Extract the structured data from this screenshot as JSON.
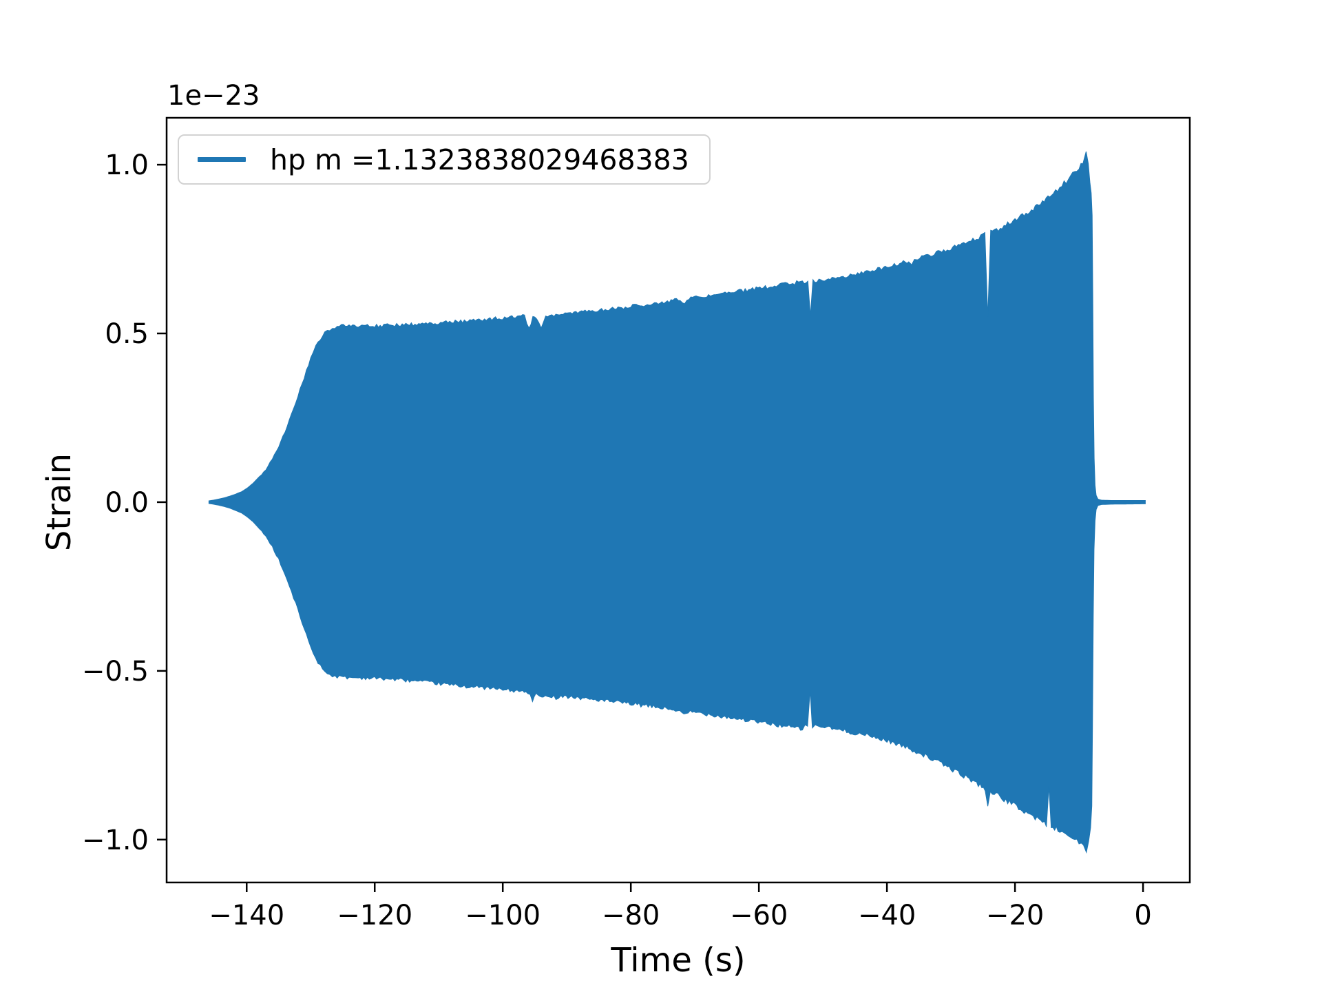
{
  "chart_data": {
    "type": "line",
    "title": "",
    "xlabel": "Time (s)",
    "ylabel": "Strain",
    "y_offset_text": "1e−23",
    "xlim": [
      -152.5,
      7.3
    ],
    "ylim": [
      -1.127,
      1.139
    ],
    "grid": false,
    "legend_position": "upper left",
    "xticks": [
      {
        "value": -140,
        "label": "−140"
      },
      {
        "value": -120,
        "label": "−120"
      },
      {
        "value": -100,
        "label": "−100"
      },
      {
        "value": -80,
        "label": "−80"
      },
      {
        "value": -60,
        "label": "−60"
      },
      {
        "value": -40,
        "label": "−40"
      },
      {
        "value": -20,
        "label": "−20"
      },
      {
        "value": 0,
        "label": "0"
      }
    ],
    "yticks": [
      {
        "value": -1.0,
        "label": "−1.0"
      },
      {
        "value": -0.5,
        "label": "−0.5"
      },
      {
        "value": 0.0,
        "label": "0.0"
      },
      {
        "value": 0.5,
        "label": "0.5"
      },
      {
        "value": 1.0,
        "label": "1.0"
      }
    ],
    "series": [
      {
        "name": "hp m =1.1323838029468383",
        "color": "#1f77b4",
        "kind": "dense-oscillation-envelope",
        "note": "gravitational-wave chirp strain (units 1e-23); oscillations too dense to resolve, drawn as filled envelope; amplitude grows from ~0 at t=-146 s, plateaus near 0.53 at t=-127 s, slowly rises to ~1.04 peak at t=-8.9 s, collapses at merger t=-7.8 s, flat ringdown near zero until t=+0.35 s; narrow envelope notches near t=-95, -52, -24, -14.7 s",
        "upper_envelope": [
          [
            -145.9,
            0.004
          ],
          [
            -145.2,
            0.006
          ],
          [
            -144.4,
            0.009
          ],
          [
            -143.5,
            0.013
          ],
          [
            -142.6,
            0.018
          ],
          [
            -141.7,
            0.024
          ],
          [
            -140.8,
            0.031
          ],
          [
            -139.9,
            0.042
          ],
          [
            -139,
            0.056
          ],
          [
            -138,
            0.076
          ],
          [
            -137,
            0.1
          ],
          [
            -136,
            0.13
          ],
          [
            -135,
            0.168
          ],
          [
            -134,
            0.213
          ],
          [
            -133,
            0.263
          ],
          [
            -132,
            0.317
          ],
          [
            -131,
            0.374
          ],
          [
            -130,
            0.428
          ],
          [
            -129.2,
            0.465
          ],
          [
            -128.5,
            0.488
          ],
          [
            -127.8,
            0.505
          ],
          [
            -127,
            0.517
          ],
          [
            -126.2,
            0.523
          ],
          [
            -125.2,
            0.527
          ],
          [
            -124,
            0.528
          ],
          [
            -122,
            0.527
          ],
          [
            -120,
            0.528
          ],
          [
            -118,
            0.529
          ],
          [
            -116,
            0.531
          ],
          [
            -114,
            0.533
          ],
          [
            -112,
            0.535
          ],
          [
            -110,
            0.537
          ],
          [
            -108,
            0.54
          ],
          [
            -106,
            0.542
          ],
          [
            -104,
            0.545
          ],
          [
            -102,
            0.548
          ],
          [
            -100,
            0.551
          ],
          [
            -98,
            0.554
          ],
          [
            -96.6,
            0.557
          ],
          [
            -95.9,
            0.522
          ],
          [
            -95.3,
            0.552
          ],
          [
            -94.7,
            0.549
          ],
          [
            -94,
            0.52
          ],
          [
            -93.3,
            0.556
          ],
          [
            -92,
            0.56
          ],
          [
            -90,
            0.564
          ],
          [
            -88,
            0.568
          ],
          [
            -86,
            0.572
          ],
          [
            -84,
            0.577
          ],
          [
            -82,
            0.581
          ],
          [
            -80,
            0.586
          ],
          [
            -78,
            0.591
          ],
          [
            -76,
            0.596
          ],
          [
            -74,
            0.601
          ],
          [
            -72.3,
            0.606
          ],
          [
            -71.6,
            0.598
          ],
          [
            -70.9,
            0.609
          ],
          [
            -69,
            0.614
          ],
          [
            -67,
            0.62
          ],
          [
            -65,
            0.625
          ],
          [
            -63,
            0.631
          ],
          [
            -61,
            0.637
          ],
          [
            -59,
            0.643
          ],
          [
            -57,
            0.649
          ],
          [
            -55,
            0.654
          ],
          [
            -53.2,
            0.659
          ],
          [
            -52.35,
            0.655
          ],
          [
            -51.95,
            0.553
          ],
          [
            -51.55,
            0.662
          ],
          [
            -50,
            0.666
          ],
          [
            -48,
            0.672
          ],
          [
            -46,
            0.679
          ],
          [
            -44,
            0.687
          ],
          [
            -42,
            0.695
          ],
          [
            -40,
            0.704
          ],
          [
            -38,
            0.714
          ],
          [
            -36.6,
            0.721
          ],
          [
            -36.15,
            0.709
          ],
          [
            -35.7,
            0.725
          ],
          [
            -34,
            0.734
          ],
          [
            -32,
            0.746
          ],
          [
            -30,
            0.759
          ],
          [
            -28,
            0.773
          ],
          [
            -26,
            0.788
          ],
          [
            -24.7,
            0.799
          ],
          [
            -24.25,
            0.548
          ],
          [
            -23.8,
            0.806
          ],
          [
            -22,
            0.822
          ],
          [
            -20,
            0.843
          ],
          [
            -18,
            0.866
          ],
          [
            -16,
            0.892
          ],
          [
            -14,
            0.923
          ],
          [
            -13,
            0.941
          ],
          [
            -12,
            0.959
          ],
          [
            -11,
            0.978
          ],
          [
            -10,
            0.999
          ],
          [
            -9.4,
            1.017
          ],
          [
            -8.9,
            1.039
          ],
          [
            -8.55,
            1.003
          ],
          [
            -8.3,
            0.948
          ],
          [
            -8.1,
            0.916
          ],
          [
            -7.95,
            0.85
          ],
          [
            -7.85,
            0.61
          ],
          [
            -7.75,
            0.31
          ],
          [
            -7.64,
            0.13
          ],
          [
            -7.5,
            0.05
          ],
          [
            -7.32,
            0.02
          ],
          [
            -7.05,
            0.009
          ],
          [
            -6.5,
            0.006
          ],
          [
            -5,
            0.005
          ],
          [
            0.35,
            0.005
          ]
        ],
        "lower_envelope": [
          [
            -145.9,
            -0.004
          ],
          [
            -145.2,
            -0.006
          ],
          [
            -144.4,
            -0.009
          ],
          [
            -143.5,
            -0.013
          ],
          [
            -142.6,
            -0.018
          ],
          [
            -141.7,
            -0.025
          ],
          [
            -140.8,
            -0.032
          ],
          [
            -139.9,
            -0.044
          ],
          [
            -139,
            -0.058
          ],
          [
            -138,
            -0.079
          ],
          [
            -137,
            -0.104
          ],
          [
            -136,
            -0.135
          ],
          [
            -135,
            -0.173
          ],
          [
            -134,
            -0.219
          ],
          [
            -133,
            -0.269
          ],
          [
            -132,
            -0.323
          ],
          [
            -131,
            -0.38
          ],
          [
            -130,
            -0.433
          ],
          [
            -129.2,
            -0.468
          ],
          [
            -128.5,
            -0.49
          ],
          [
            -127.8,
            -0.506
          ],
          [
            -127,
            -0.516
          ],
          [
            -126.2,
            -0.521
          ],
          [
            -125.2,
            -0.524
          ],
          [
            -124,
            -0.525
          ],
          [
            -122,
            -0.526
          ],
          [
            -120,
            -0.527
          ],
          [
            -118,
            -0.529
          ],
          [
            -116,
            -0.532
          ],
          [
            -114,
            -0.535
          ],
          [
            -112,
            -0.539
          ],
          [
            -110,
            -0.543
          ],
          [
            -108,
            -0.547
          ],
          [
            -106,
            -0.551
          ],
          [
            -104,
            -0.554
          ],
          [
            -102,
            -0.557
          ],
          [
            -100,
            -0.561
          ],
          [
            -98,
            -0.565
          ],
          [
            -96.1,
            -0.569
          ],
          [
            -95.35,
            -0.593
          ],
          [
            -94.8,
            -0.574
          ],
          [
            -93.7,
            -0.588
          ],
          [
            -93,
            -0.576
          ],
          [
            -91.7,
            -0.585
          ],
          [
            -90.9,
            -0.579
          ],
          [
            -89,
            -0.584
          ],
          [
            -87,
            -0.588
          ],
          [
            -85,
            -0.592
          ],
          [
            -83,
            -0.597
          ],
          [
            -81,
            -0.601
          ],
          [
            -79,
            -0.606
          ],
          [
            -77,
            -0.611
          ],
          [
            -75,
            -0.616
          ],
          [
            -73,
            -0.622
          ],
          [
            -71.4,
            -0.637
          ],
          [
            -70.7,
            -0.627
          ],
          [
            -69,
            -0.631
          ],
          [
            -67,
            -0.637
          ],
          [
            -65,
            -0.643
          ],
          [
            -63,
            -0.649
          ],
          [
            -61,
            -0.655
          ],
          [
            -59,
            -0.661
          ],
          [
            -57,
            -0.667
          ],
          [
            -55,
            -0.673
          ],
          [
            -53.2,
            -0.678
          ],
          [
            -52.4,
            -0.664
          ],
          [
            -52,
            -0.558
          ],
          [
            -51.65,
            -0.674
          ],
          [
            -51.2,
            -0.668
          ],
          [
            -50,
            -0.672
          ],
          [
            -48,
            -0.679
          ],
          [
            -46,
            -0.687
          ],
          [
            -44,
            -0.694
          ],
          [
            -42,
            -0.703
          ],
          [
            -40,
            -0.713
          ],
          [
            -38,
            -0.726
          ],
          [
            -36,
            -0.741
          ],
          [
            -34,
            -0.758
          ],
          [
            -32,
            -0.777
          ],
          [
            -30,
            -0.797
          ],
          [
            -28,
            -0.818
          ],
          [
            -26,
            -0.84
          ],
          [
            -24.65,
            -0.856
          ],
          [
            -24.25,
            -0.901
          ],
          [
            -23.85,
            -0.863
          ],
          [
            -22,
            -0.885
          ],
          [
            -20,
            -0.907
          ],
          [
            -18,
            -0.93
          ],
          [
            -16,
            -0.952
          ],
          [
            -15.1,
            -0.962
          ],
          [
            -14.7,
            -0.842
          ],
          [
            -14.35,
            -0.968
          ],
          [
            -13,
            -0.982
          ],
          [
            -12,
            -0.993
          ],
          [
            -11,
            -1.003
          ],
          [
            -10,
            -1.014
          ],
          [
            -9.3,
            -1.027
          ],
          [
            -8.85,
            -1.038
          ],
          [
            -8.5,
            -1.005
          ],
          [
            -8.2,
            -0.965
          ],
          [
            -8,
            -0.9
          ],
          [
            -7.9,
            -0.66
          ],
          [
            -7.78,
            -0.34
          ],
          [
            -7.66,
            -0.14
          ],
          [
            -7.5,
            -0.055
          ],
          [
            -7.32,
            -0.022
          ],
          [
            -7.05,
            -0.01
          ],
          [
            -6.5,
            -0.007
          ],
          [
            -5,
            -0.006
          ],
          [
            0.35,
            -0.005
          ]
        ]
      }
    ]
  },
  "legend": {
    "entries": [
      {
        "label": "hp m =1.1323838029468383",
        "color": "#1f77b4"
      }
    ]
  },
  "colors": {
    "series_blue": "#1f77b4",
    "axes": "#000000",
    "background": "#ffffff",
    "legend_border": "#d2d2d2"
  }
}
